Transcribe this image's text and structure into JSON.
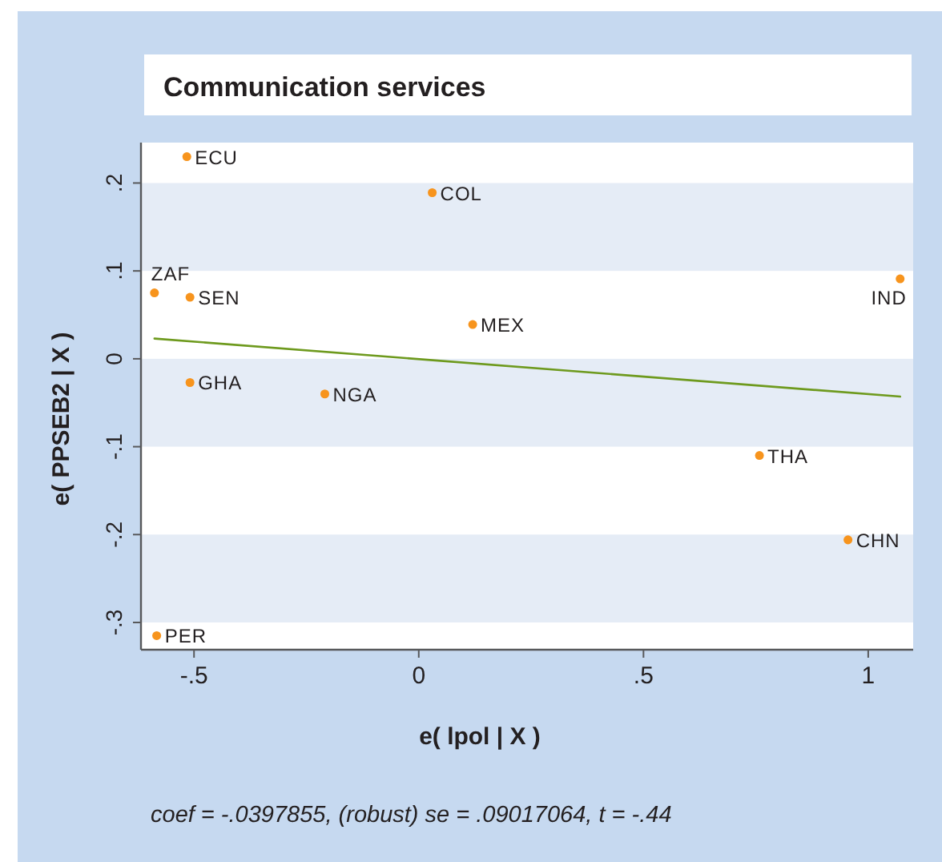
{
  "chart_data": {
    "type": "scatter",
    "title": "Communication services",
    "xlabel": "e( lpol | X )",
    "ylabel": "e( PPSEB2 | X )",
    "annotations": [
      "coef = -.0397855, (robust) se = .09017064, t = -.44",
      {
        "text": "ECU",
        "x": -0.516,
        "y": 0.23
      },
      {
        "text": "COL",
        "x": 0.03,
        "y": 0.189
      },
      {
        "text": "ZAF",
        "x": -0.588,
        "y": 0.075
      },
      {
        "text": "SEN",
        "x": -0.509,
        "y": 0.07
      },
      {
        "text": "MEX",
        "x": 0.12,
        "y": 0.039
      },
      {
        "text": "IND",
        "x": 1.071,
        "y": 0.091
      },
      {
        "text": "GHA",
        "x": -0.509,
        "y": -0.027
      },
      {
        "text": "NGA",
        "x": -0.209,
        "y": -0.04
      },
      {
        "text": "THA",
        "x": 0.758,
        "y": -0.11
      },
      {
        "text": "CHN",
        "x": 0.955,
        "y": -0.206
      },
      {
        "text": "PER",
        "x": -0.583,
        "y": -0.315
      }
    ],
    "series": [
      {
        "color": "#f7941d",
        "marker": "circle",
        "x": [
          -0.516,
          0.03,
          -0.588,
          -0.509,
          0.12,
          1.071,
          -0.509,
          -0.209,
          0.758,
          0.955,
          -0.583
        ],
        "values": [
          0.23,
          0.189,
          0.075,
          0.07,
          0.039,
          0.091,
          -0.027,
          -0.04,
          -0.11,
          -0.206,
          -0.315
        ]
      },
      {
        "type": "line",
        "color": "#6e9a1e",
        "marker": "none",
        "x": [
          -0.588,
          1.071
        ],
        "values": [
          0.023,
          -0.043
        ]
      }
    ],
    "xlim": [
      -0.618,
      1.1
    ],
    "ylim": [
      -0.331,
      0.246
    ],
    "xticks": [
      {
        "value": -0.5,
        "label": "-.5"
      },
      0,
      {
        "value": 0.5,
        "label": ".5"
      },
      1
    ],
    "yticks": [
      {
        "value": -0.3,
        "label": "-.3"
      },
      {
        "value": -0.2,
        "label": "-.2"
      },
      {
        "value": -0.1,
        "label": "-.1"
      },
      0,
      {
        "value": 0.1,
        "label": ".1"
      },
      {
        "value": 0.2,
        "label": ".2"
      }
    ],
    "bands": [
      {
        "axis": "y",
        "from": 0.1,
        "to": 0.2,
        "color": "#e5ecf6"
      },
      {
        "axis": "y",
        "from": -0.1,
        "to": 0,
        "color": "#e5ecf6"
      },
      {
        "axis": "y",
        "from": -0.3,
        "to": -0.2,
        "color": "#e5ecf6"
      }
    ]
  }
}
